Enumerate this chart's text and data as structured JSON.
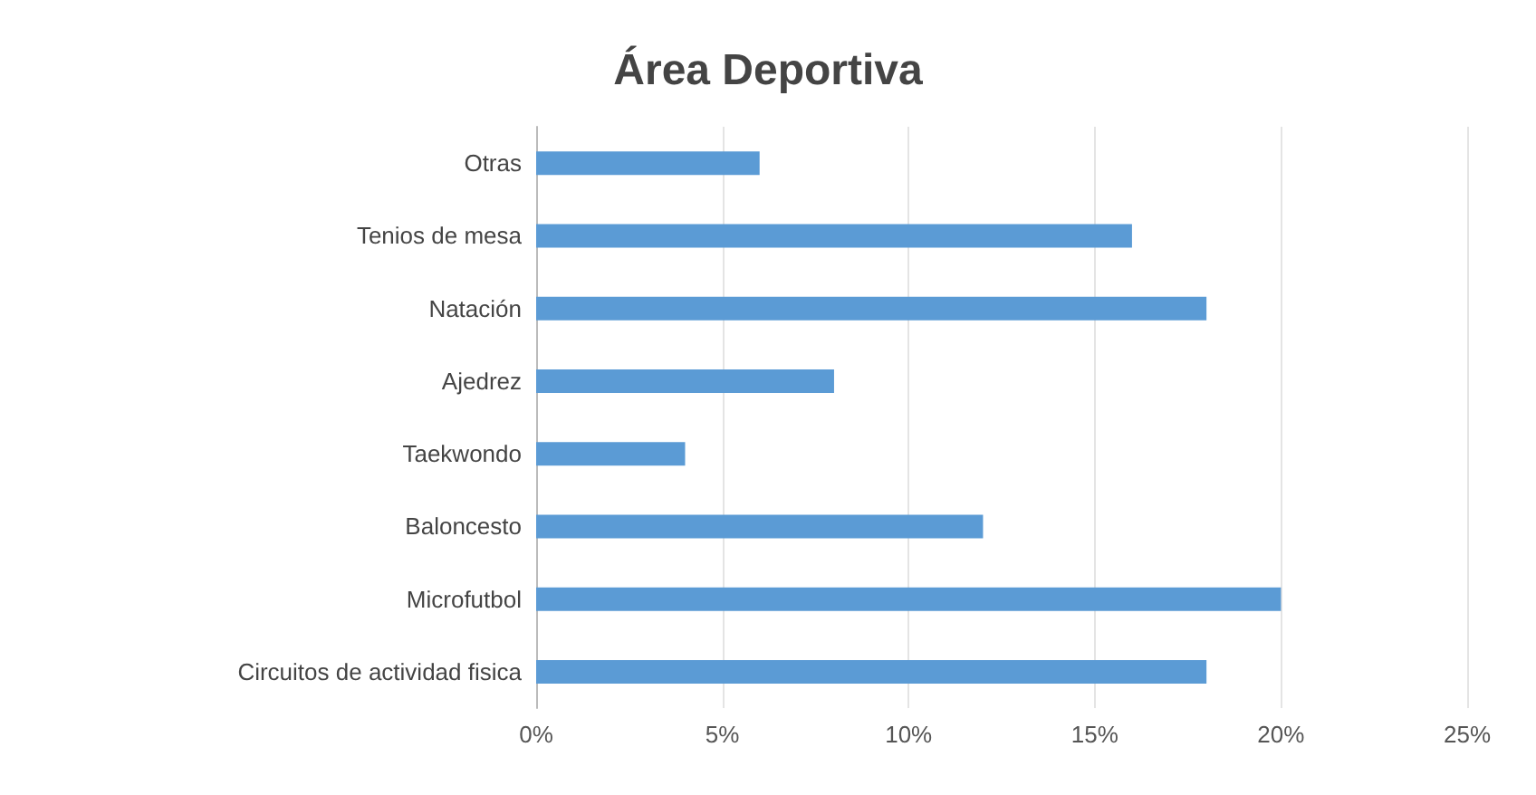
{
  "chart_data": {
    "type": "bar",
    "orientation": "horizontal",
    "title": "Área Deportiva",
    "categories": [
      "Otras",
      "Tenios de mesa",
      "Natación",
      "Ajedrez",
      "Taekwondo",
      "Baloncesto",
      "Microfutbol",
      "Circuitos de actividad fisica"
    ],
    "values": [
      6,
      16,
      18,
      8,
      4,
      12,
      20,
      18
    ],
    "color": "#5b9bd5",
    "xlim": [
      0,
      25
    ],
    "xticks": [
      {
        "value": 0,
        "label": "0%"
      },
      {
        "value": 5,
        "label": "5%"
      },
      {
        "value": 10,
        "label": "10%"
      },
      {
        "value": 15,
        "label": "15%"
      },
      {
        "value": 20,
        "label": "20%"
      },
      {
        "value": 25,
        "label": "25%"
      }
    ],
    "grid": "x"
  }
}
